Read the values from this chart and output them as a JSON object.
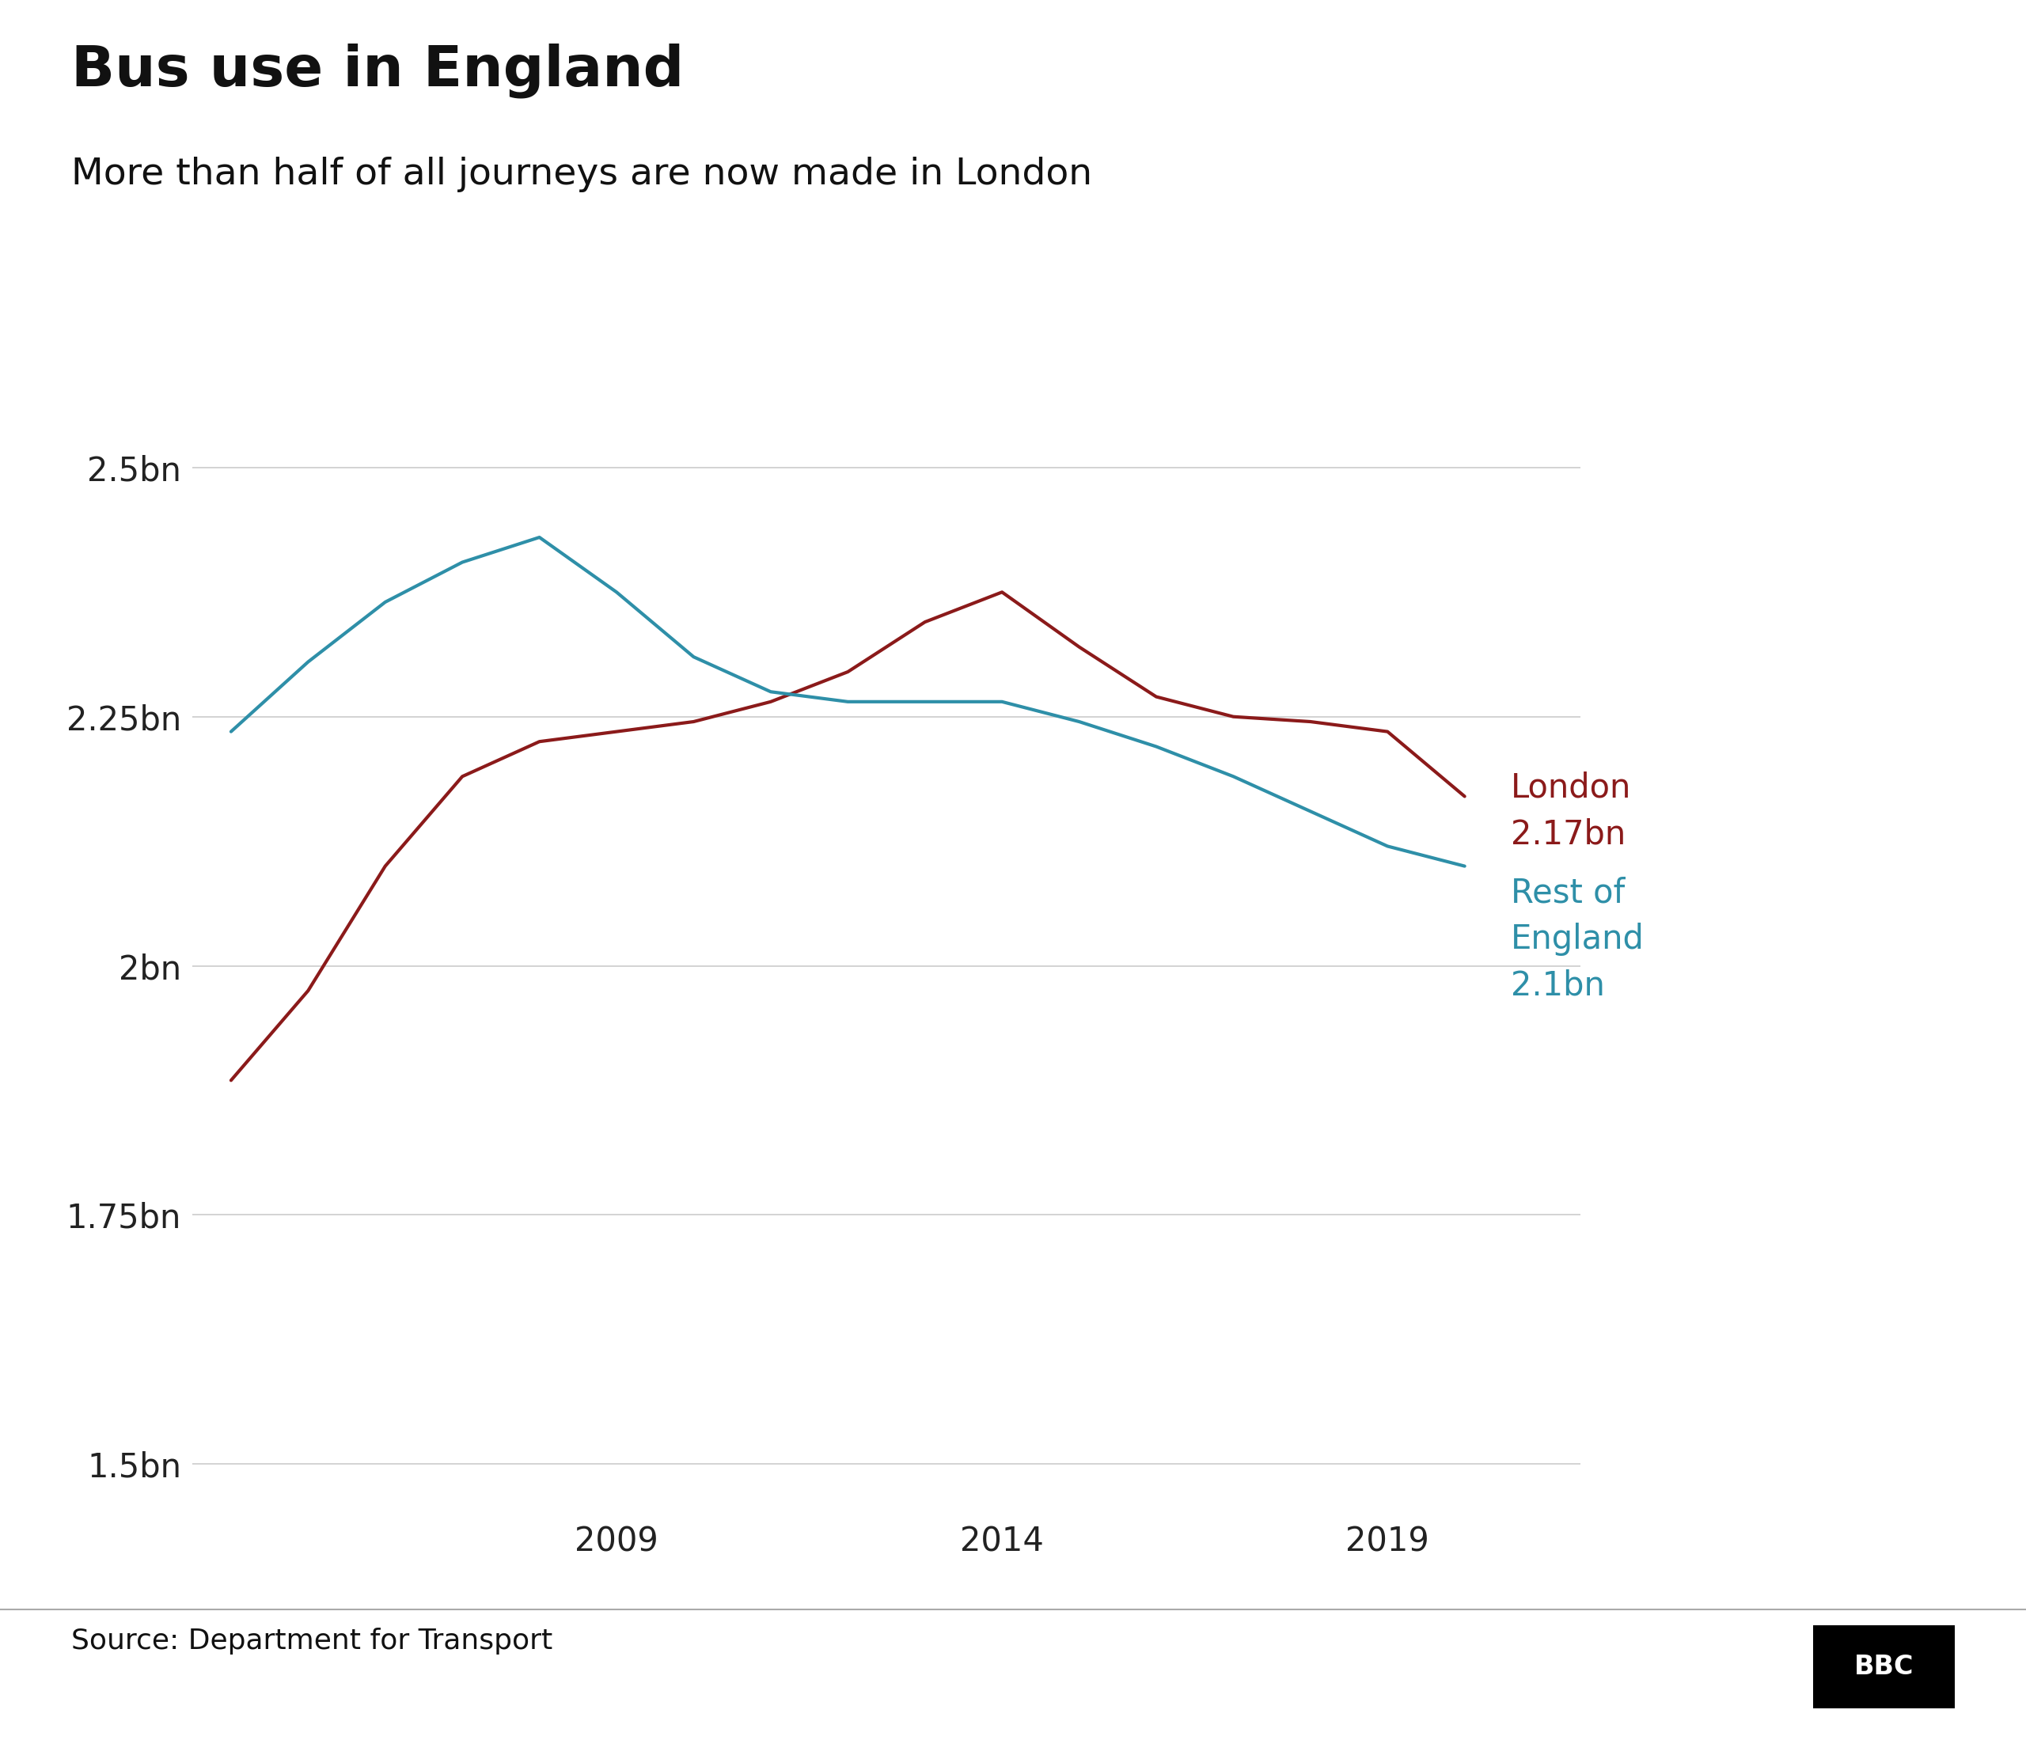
{
  "title": "Bus use in England",
  "subtitle": "More than half of all journeys are now made in London",
  "source": "Source: Department for Transport",
  "london_x": [
    2004,
    2005,
    2006,
    2007,
    2008,
    2009,
    2010,
    2011,
    2012,
    2013,
    2014,
    2015,
    2016,
    2017,
    2018,
    2019,
    2020
  ],
  "london_y": [
    1.885,
    1.975,
    2.1,
    2.19,
    2.225,
    2.235,
    2.245,
    2.265,
    2.295,
    2.345,
    2.375,
    2.32,
    2.27,
    2.25,
    2.245,
    2.235,
    2.17
  ],
  "rest_x": [
    2004,
    2005,
    2006,
    2007,
    2008,
    2009,
    2010,
    2011,
    2012,
    2013,
    2014,
    2015,
    2016,
    2017,
    2018,
    2019,
    2020
  ],
  "rest_y": [
    2.235,
    2.305,
    2.365,
    2.405,
    2.43,
    2.375,
    2.31,
    2.275,
    2.265,
    2.265,
    2.265,
    2.245,
    2.22,
    2.19,
    2.155,
    2.12,
    2.1
  ],
  "london_color": "#8B1A1A",
  "rest_color": "#2E8FA8",
  "london_label_line1": "London",
  "london_label_line2": "2.17bn",
  "rest_label_line1": "Rest of",
  "rest_label_line2": "England",
  "rest_label_line3": "2.1bn",
  "ylim": [
    1.45,
    2.62
  ],
  "yticks": [
    1.5,
    1.75,
    2.0,
    2.25,
    2.5
  ],
  "ytick_labels": [
    "1.5bn",
    "1.75bn",
    "2bn",
    "2.25bn",
    "2.5bn"
  ],
  "xticks": [
    2009,
    2014,
    2019
  ],
  "xlim": [
    2003.5,
    2021.5
  ],
  "line_width": 3.0,
  "background_color": "#ffffff",
  "grid_color": "#cccccc",
  "title_fontsize": 52,
  "subtitle_fontsize": 34,
  "tick_fontsize": 30,
  "source_fontsize": 26,
  "annotation_fontsize": 30
}
